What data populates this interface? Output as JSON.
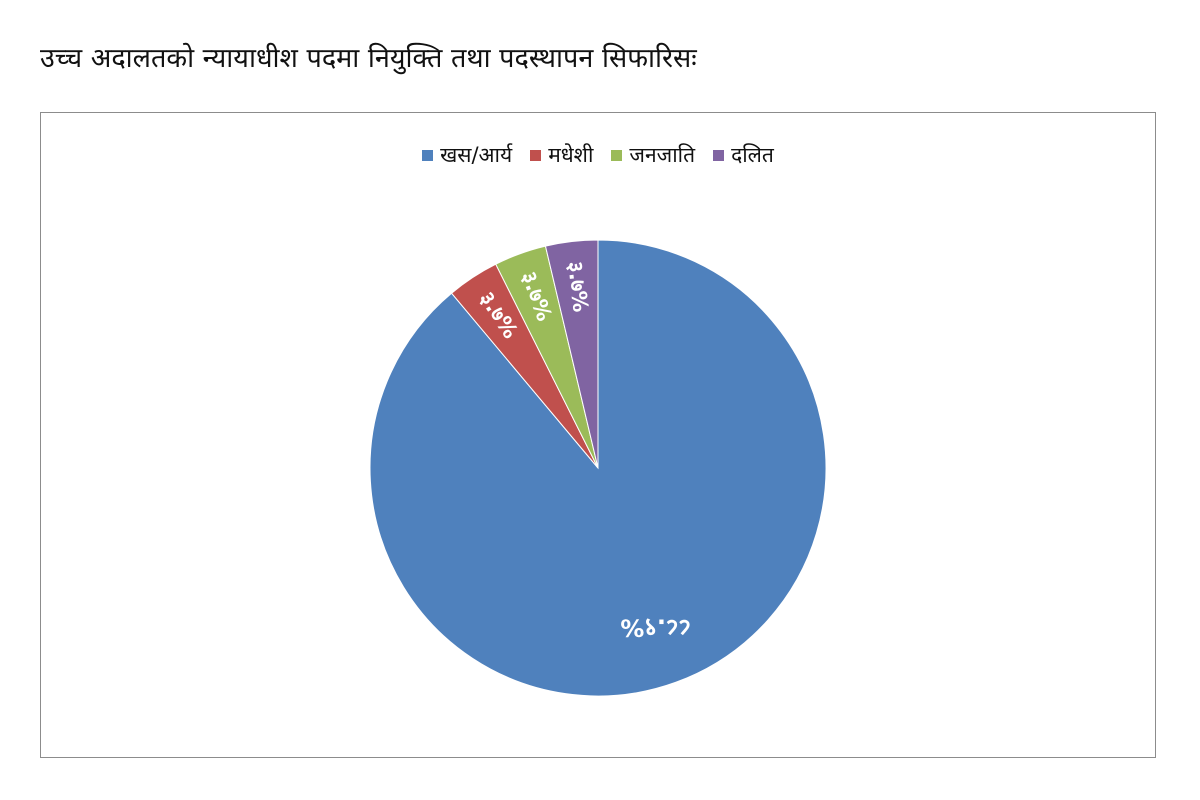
{
  "title": "उच्च अदालतको न्यायाधीश पदमा नियुक्ति तथा पदस्थापन सिफारिसः",
  "chart_data": {
    "type": "pie",
    "title": "",
    "categories": [
      "खस/आर्य",
      "मधेशी",
      "जनजाति",
      "दलित"
    ],
    "values": [
      88.9,
      3.7,
      3.7,
      3.7
    ],
    "labels": [
      "८८.९%",
      "३.७%",
      "३.७%",
      "३.७%"
    ],
    "colors": [
      "#4f81bd",
      "#c0504d",
      "#9bbb59",
      "#8064a2"
    ],
    "legend_position": "top",
    "start_angle": "top, clockwise"
  }
}
